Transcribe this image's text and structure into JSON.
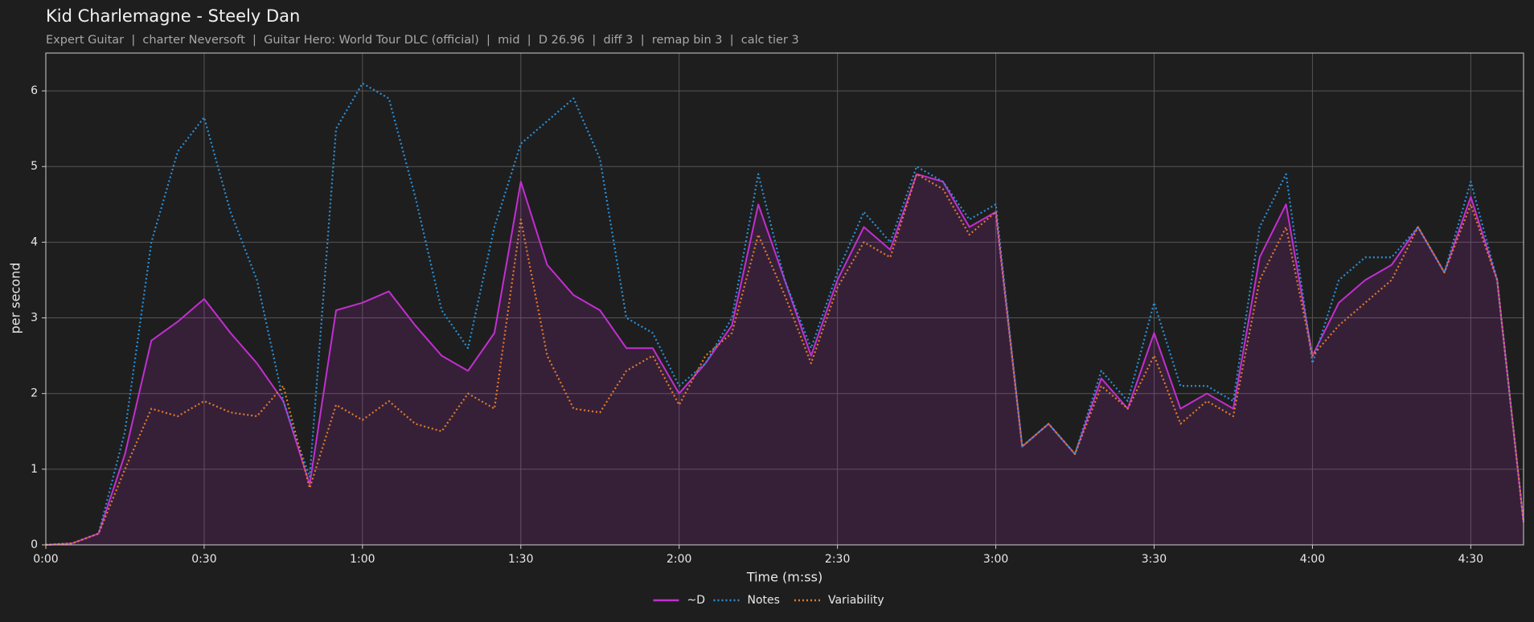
{
  "chart_data": {
    "type": "line",
    "title": "Kid Charlemagne - Steely Dan",
    "subtitle": "Expert Guitar  |  charter Neversoft  |  Guitar Hero: World Tour DLC (official)  |  mid  |  D 26.96  |  diff 3  |  remap bin 3  |  calc tier 3",
    "xlabel": "Time (m:ss)",
    "ylabel": "per second",
    "x": [
      0,
      5,
      10,
      15,
      20,
      25,
      30,
      35,
      40,
      45,
      50,
      55,
      60,
      65,
      70,
      75,
      80,
      85,
      90,
      95,
      100,
      105,
      110,
      115,
      120,
      125,
      130,
      135,
      140,
      145,
      150,
      155,
      160,
      165,
      170,
      175,
      180,
      185,
      190,
      195,
      200,
      205,
      210,
      215,
      220,
      225,
      230,
      235,
      240,
      245,
      250,
      255,
      260,
      265,
      270,
      275,
      280
    ],
    "series": [
      {
        "name": "~D",
        "color": "#c22fd0",
        "linestyle": "solid",
        "area": true,
        "values": [
          0,
          0.02,
          0.15,
          1.2,
          2.7,
          2.95,
          3.25,
          2.8,
          2.4,
          1.9,
          0.8,
          3.1,
          3.2,
          3.35,
          2.9,
          2.5,
          2.3,
          2.8,
          4.8,
          3.7,
          3.3,
          3.1,
          2.6,
          2.6,
          2.0,
          2.4,
          2.9,
          4.5,
          3.5,
          2.5,
          3.5,
          4.2,
          3.9,
          4.9,
          4.8,
          4.2,
          4.4,
          1.3,
          1.6,
          1.2,
          2.2,
          1.8,
          2.8,
          1.8,
          2.0,
          1.8,
          3.8,
          4.5,
          2.5,
          3.2,
          3.5,
          3.7,
          4.2,
          3.6,
          4.6,
          3.5,
          0.3
        ]
      },
      {
        "name": "Notes",
        "color": "#2b8fd6",
        "linestyle": "dotted",
        "area": false,
        "values": [
          0,
          0.02,
          0.15,
          1.5,
          4.0,
          5.2,
          5.65,
          4.4,
          3.5,
          1.9,
          0.9,
          5.5,
          6.1,
          5.9,
          4.6,
          3.1,
          2.6,
          4.2,
          5.3,
          5.6,
          5.9,
          5.1,
          3.0,
          2.8,
          2.1,
          2.4,
          3.0,
          4.9,
          3.5,
          2.6,
          3.6,
          4.4,
          4.0,
          5.0,
          4.8,
          4.3,
          4.5,
          1.3,
          1.6,
          1.2,
          2.3,
          1.9,
          3.2,
          2.1,
          2.1,
          1.9,
          4.2,
          4.9,
          2.4,
          3.5,
          3.8,
          3.8,
          4.2,
          3.6,
          4.8,
          3.5,
          0.3
        ]
      },
      {
        "name": "Variability",
        "color": "#e07b2a",
        "linestyle": "dotted",
        "area": false,
        "values": [
          0,
          0.02,
          0.15,
          1.0,
          1.8,
          1.7,
          1.9,
          1.75,
          1.7,
          2.1,
          0.75,
          1.85,
          1.65,
          1.9,
          1.6,
          1.5,
          2.0,
          1.8,
          4.3,
          2.5,
          1.8,
          1.75,
          2.3,
          2.5,
          1.85,
          2.5,
          2.8,
          4.1,
          3.3,
          2.4,
          3.4,
          4.0,
          3.8,
          4.9,
          4.7,
          4.1,
          4.4,
          1.3,
          1.6,
          1.2,
          2.1,
          1.8,
          2.5,
          1.6,
          1.9,
          1.7,
          3.5,
          4.2,
          2.5,
          2.9,
          3.2,
          3.5,
          4.2,
          3.6,
          4.5,
          3.5,
          0.3
        ]
      }
    ],
    "xlim": [
      0,
      280
    ],
    "ylim": [
      0,
      6.5
    ],
    "xticks": [
      {
        "value": 0,
        "label": "0:00"
      },
      {
        "value": 30,
        "label": "0:30"
      },
      {
        "value": 60,
        "label": "1:00"
      },
      {
        "value": 90,
        "label": "1:30"
      },
      {
        "value": 120,
        "label": "2:00"
      },
      {
        "value": 150,
        "label": "2:30"
      },
      {
        "value": 180,
        "label": "3:00"
      },
      {
        "value": 210,
        "label": "3:30"
      },
      {
        "value": 240,
        "label": "4:00"
      },
      {
        "value": 270,
        "label": "4:30"
      }
    ],
    "yticks": [
      0,
      1,
      2,
      3,
      4,
      5,
      6
    ],
    "grid": true,
    "legend": "lower center"
  }
}
